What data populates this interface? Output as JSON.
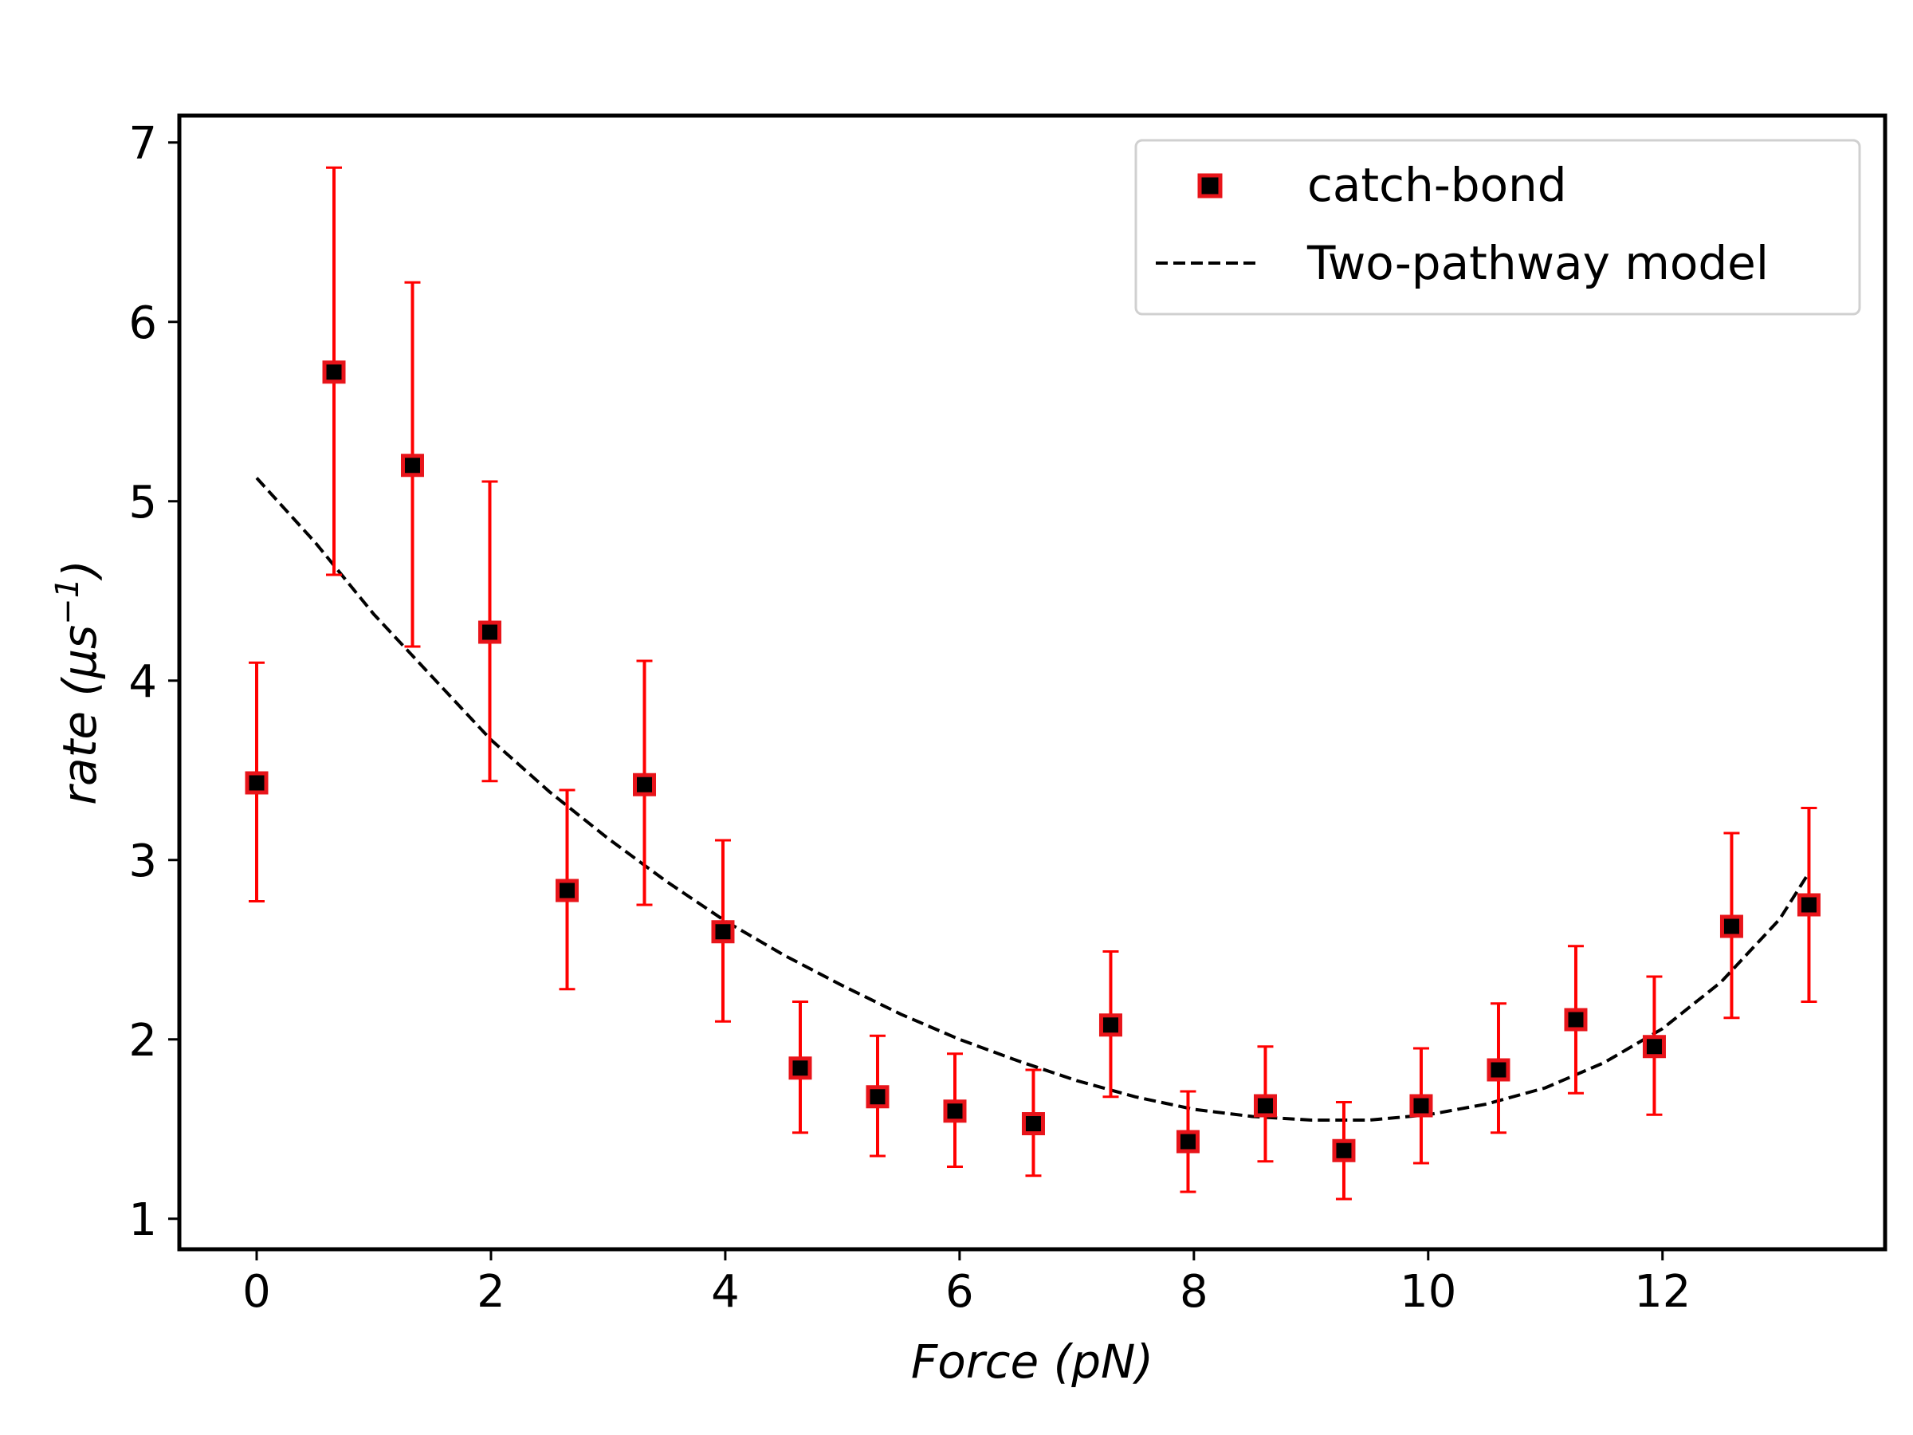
{
  "chart_data": {
    "type": "scatter",
    "xlabel": "Force (pN)",
    "ylabel_main": "rate (μs",
    "ylabel_sup": "−1",
    "ylabel_close": ")",
    "xlim": [
      -0.66,
      13.9
    ],
    "ylim": [
      0.83,
      7.15
    ],
    "xticks": [
      0,
      2,
      4,
      6,
      8,
      10,
      12
    ],
    "yticks": [
      1,
      2,
      3,
      4,
      5,
      6,
      7
    ],
    "grid": false,
    "legend_position": "top-right",
    "legend": [
      {
        "label": "catch-bond",
        "kind": "marker"
      },
      {
        "label": "Two-pathway model",
        "kind": "dashed-line"
      }
    ],
    "series": [
      {
        "name": "catch-bond",
        "marker": "square",
        "marker_face": "#000000",
        "marker_edge": "#e8141a",
        "errorbar_color": "#ff0000",
        "points": [
          {
            "x": 0.0,
            "y": 3.43,
            "lo": 2.77,
            "hi": 4.1
          },
          {
            "x": 0.66,
            "y": 5.72,
            "lo": 4.59,
            "hi": 6.86
          },
          {
            "x": 1.33,
            "y": 5.2,
            "lo": 4.19,
            "hi": 6.22
          },
          {
            "x": 1.99,
            "y": 4.27,
            "lo": 3.44,
            "hi": 5.11
          },
          {
            "x": 2.65,
            "y": 2.83,
            "lo": 2.28,
            "hi": 3.39
          },
          {
            "x": 3.31,
            "y": 3.42,
            "lo": 2.75,
            "hi": 4.11
          },
          {
            "x": 3.98,
            "y": 2.6,
            "lo": 2.1,
            "hi": 3.11
          },
          {
            "x": 4.64,
            "y": 1.84,
            "lo": 1.48,
            "hi": 2.21
          },
          {
            "x": 5.3,
            "y": 1.68,
            "lo": 1.35,
            "hi": 2.02
          },
          {
            "x": 5.96,
            "y": 1.6,
            "lo": 1.29,
            "hi": 1.92
          },
          {
            "x": 6.63,
            "y": 1.53,
            "lo": 1.24,
            "hi": 1.83
          },
          {
            "x": 7.29,
            "y": 2.08,
            "lo": 1.68,
            "hi": 2.49
          },
          {
            "x": 7.95,
            "y": 1.43,
            "lo": 1.15,
            "hi": 1.71
          },
          {
            "x": 8.61,
            "y": 1.63,
            "lo": 1.32,
            "hi": 1.96
          },
          {
            "x": 9.28,
            "y": 1.38,
            "lo": 1.11,
            "hi": 1.65
          },
          {
            "x": 9.94,
            "y": 1.63,
            "lo": 1.31,
            "hi": 1.95
          },
          {
            "x": 10.6,
            "y": 1.83,
            "lo": 1.48,
            "hi": 2.2
          },
          {
            "x": 11.26,
            "y": 2.11,
            "lo": 1.7,
            "hi": 2.52
          },
          {
            "x": 11.93,
            "y": 1.96,
            "lo": 1.58,
            "hi": 2.35
          },
          {
            "x": 12.59,
            "y": 2.63,
            "lo": 2.12,
            "hi": 3.15
          },
          {
            "x": 13.25,
            "y": 2.75,
            "lo": 2.21,
            "hi": 3.29
          }
        ]
      },
      {
        "name": "Two-pathway model",
        "line_style": "dashed",
        "color": "#000000",
        "x": [
          0,
          0.5,
          1,
          1.5,
          2,
          2.5,
          3,
          3.5,
          4,
          4.5,
          5,
          5.5,
          6,
          6.5,
          7,
          7.5,
          8,
          8.5,
          9,
          9.5,
          10,
          10.5,
          11,
          11.5,
          12,
          12.5,
          13,
          13.25
        ],
        "y": [
          5.13,
          4.77,
          4.37,
          4.02,
          3.67,
          3.38,
          3.12,
          2.88,
          2.66,
          2.47,
          2.3,
          2.14,
          2.0,
          1.88,
          1.77,
          1.68,
          1.61,
          1.57,
          1.55,
          1.55,
          1.58,
          1.64,
          1.73,
          1.87,
          2.06,
          2.32,
          2.67,
          2.93
        ]
      }
    ]
  }
}
